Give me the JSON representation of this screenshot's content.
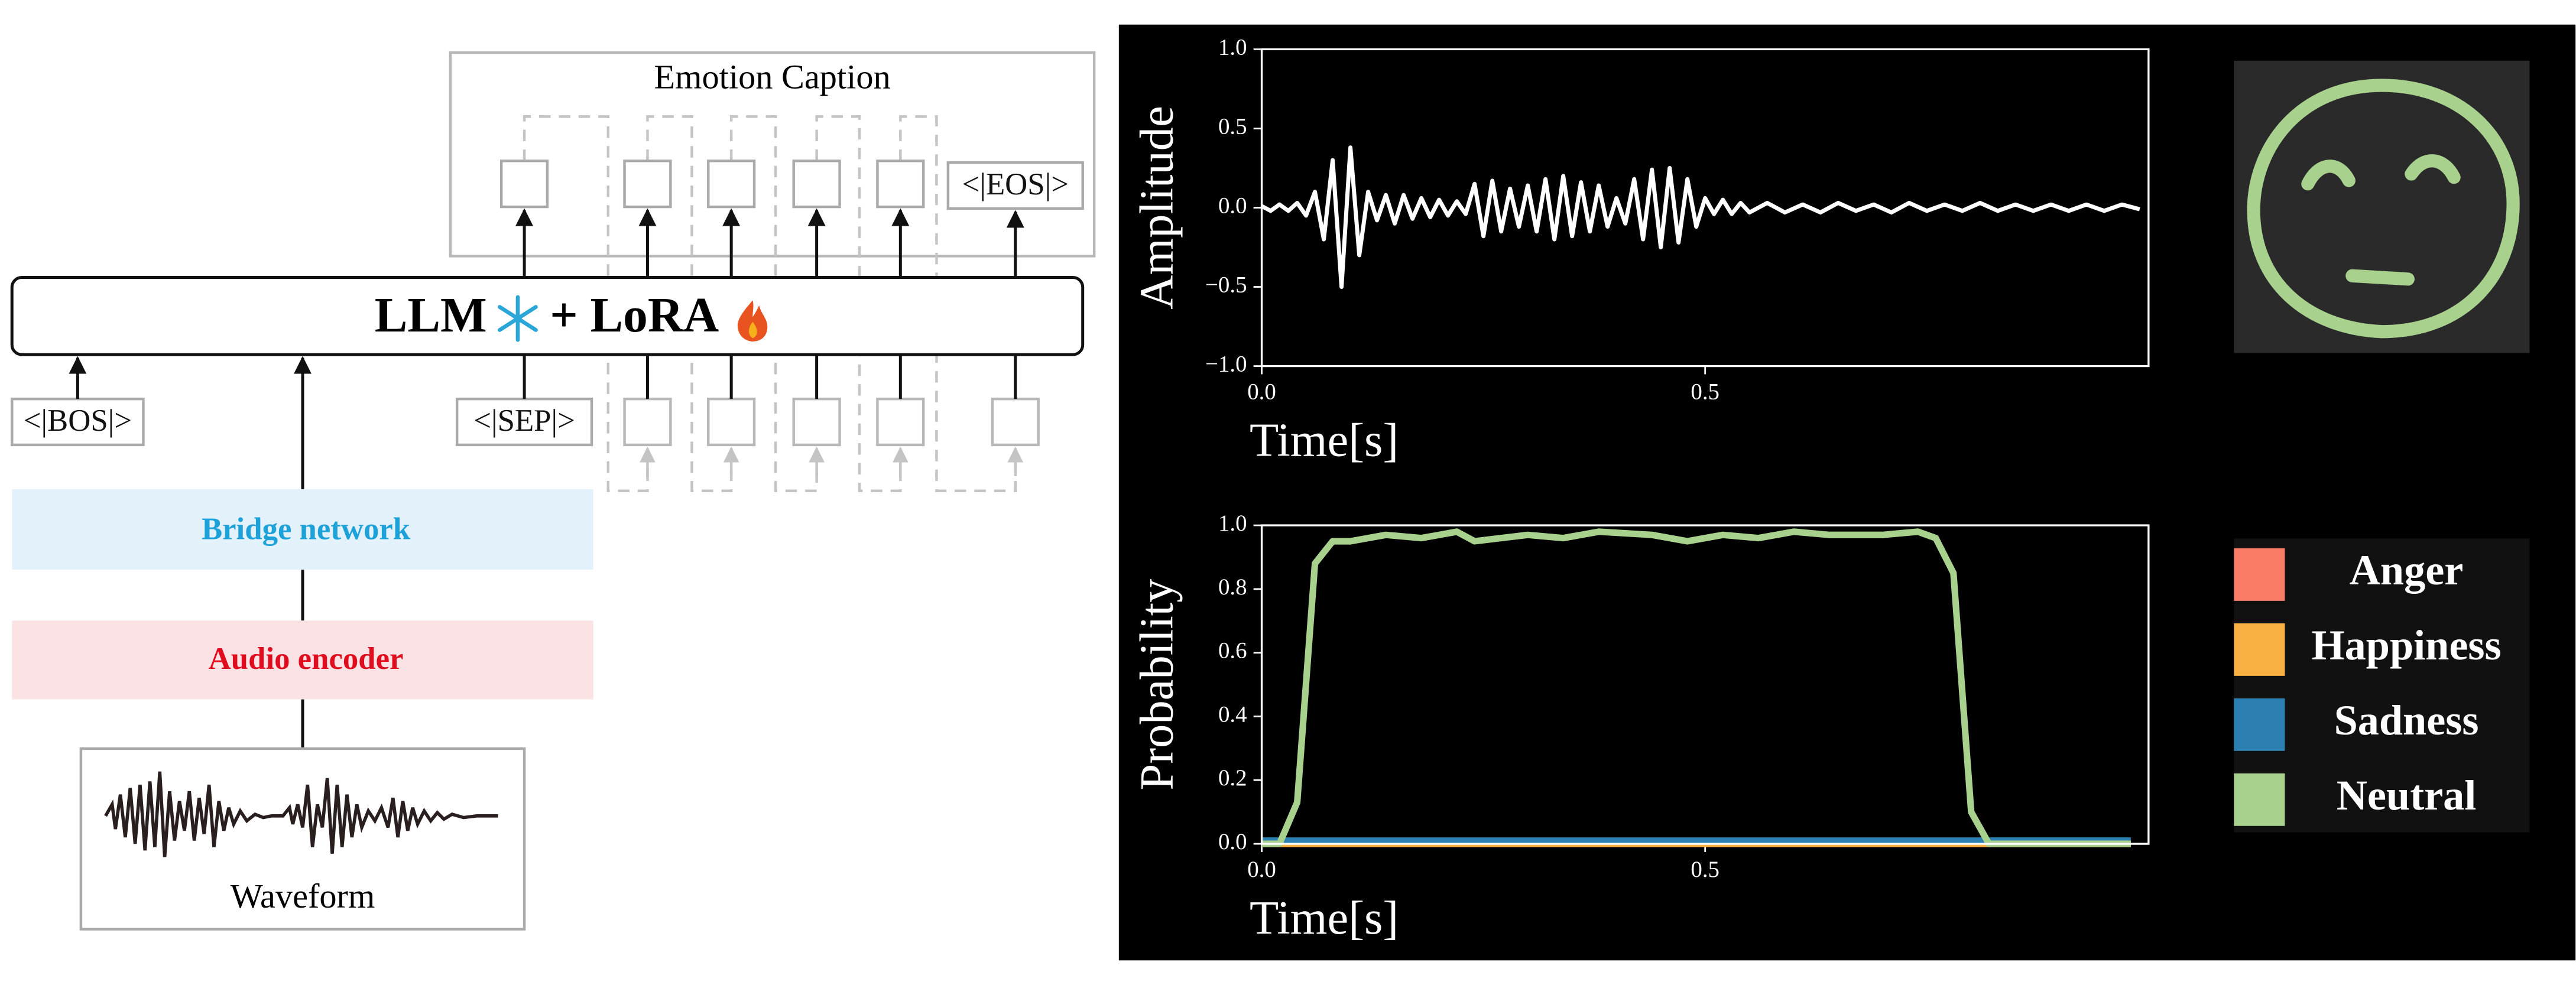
{
  "diagram": {
    "caption_title": "Emotion Caption",
    "llm_label": "LLM",
    "lora_label": "+ LoRA",
    "eos": "<|EOS|>",
    "bos": "<|BOS|>",
    "sep": "<|SEP|>",
    "bridge": "Bridge network",
    "encoder": "Audio encoder",
    "waveform": "Waveform"
  },
  "chart_data": [
    {
      "type": "line",
      "xlabel": "Time[s]",
      "ylabel": "Amplitude",
      "color": "#ffffff",
      "x": [
        0,
        0.01,
        0.02,
        0.03,
        0.04,
        0.05,
        0.06,
        0.07,
        0.08,
        0.09,
        0.1,
        0.11,
        0.12,
        0.13,
        0.14,
        0.15,
        0.16,
        0.17,
        0.18,
        0.19,
        0.2,
        0.21,
        0.22,
        0.23,
        0.24,
        0.25,
        0.26,
        0.27,
        0.28,
        0.29,
        0.3,
        0.31,
        0.32,
        0.33,
        0.34,
        0.35,
        0.36,
        0.37,
        0.38,
        0.39,
        0.4,
        0.41,
        0.42,
        0.43,
        0.44,
        0.45,
        0.46,
        0.47,
        0.48,
        0.49,
        0.5,
        0.51,
        0.52,
        0.53,
        0.54,
        0.55,
        0.57,
        0.59,
        0.61,
        0.63,
        0.65,
        0.67,
        0.69,
        0.71,
        0.73,
        0.75,
        0.77,
        0.79,
        0.81,
        0.83,
        0.85,
        0.87,
        0.89,
        0.91,
        0.93,
        0.95,
        0.97,
        0.99
      ],
      "values": [
        0.01,
        -0.02,
        0.02,
        -0.02,
        0.03,
        -0.05,
        0.1,
        -0.2,
        0.3,
        -0.5,
        0.38,
        -0.3,
        0.1,
        -0.08,
        0.08,
        -0.1,
        0.08,
        -0.07,
        0.06,
        -0.06,
        0.05,
        -0.05,
        0.04,
        -0.04,
        0.15,
        -0.18,
        0.17,
        -0.15,
        0.12,
        -0.12,
        0.14,
        -0.15,
        0.18,
        -0.2,
        0.2,
        -0.18,
        0.16,
        -0.15,
        0.14,
        -0.12,
        0.06,
        -0.1,
        0.18,
        -0.2,
        0.24,
        -0.25,
        0.25,
        -0.22,
        0.18,
        -0.12,
        0.06,
        -0.04,
        0.05,
        -0.04,
        0.03,
        -0.03,
        0.03,
        -0.03,
        0.02,
        -0.03,
        0.03,
        -0.02,
        0.02,
        -0.03,
        0.03,
        -0.02,
        0.02,
        -0.02,
        0.03,
        -0.02,
        0.02,
        -0.02,
        0.02,
        -0.02,
        0.02,
        -0.02,
        0.02,
        -0.01
      ],
      "xlim": [
        0,
        1
      ],
      "ylim": [
        -1,
        1
      ],
      "xticks": [
        {
          "value": 0,
          "label": "0.0"
        },
        {
          "value": 0.5,
          "label": "0.5"
        }
      ],
      "yticks": [
        {
          "value": -1,
          "label": "−1.0"
        },
        {
          "value": -0.5,
          "label": "−0.5"
        },
        {
          "value": 0,
          "label": "0.0"
        },
        {
          "value": 0.5,
          "label": "0.5"
        },
        {
          "value": 1,
          "label": "1.0"
        }
      ]
    },
    {
      "type": "line",
      "xlabel": "Time[s]",
      "ylabel": "Probability",
      "legend": "right",
      "x": [
        0,
        0.02,
        0.04,
        0.06,
        0.08,
        0.1,
        0.14,
        0.18,
        0.22,
        0.24,
        0.3,
        0.34,
        0.38,
        0.44,
        0.48,
        0.52,
        0.56,
        0.6,
        0.64,
        0.7,
        0.74,
        0.76,
        0.78,
        0.8,
        0.82,
        0.98
      ],
      "series": [
        {
          "name": "Anger",
          "color": "#f97c66",
          "values": [
            0,
            0,
            0,
            0,
            0,
            0,
            0,
            0,
            0,
            0,
            0,
            0,
            0,
            0,
            0,
            0,
            0,
            0,
            0,
            0,
            0,
            0,
            0,
            0,
            0,
            0
          ]
        },
        {
          "name": "Happiness",
          "color": "#f9b144",
          "values": [
            0,
            0,
            0,
            0,
            0,
            0,
            0,
            0,
            0,
            0,
            0,
            0,
            0,
            0,
            0,
            0,
            0,
            0,
            0,
            0,
            0,
            0,
            0,
            0,
            0,
            0
          ]
        },
        {
          "name": "Sadness",
          "color": "#2b7fb1",
          "values": [
            0.01,
            0.01,
            0.01,
            0.01,
            0.01,
            0.01,
            0.01,
            0.01,
            0.01,
            0.01,
            0.01,
            0.01,
            0.01,
            0.01,
            0.01,
            0.01,
            0.01,
            0.01,
            0.01,
            0.01,
            0.01,
            0.01,
            0.01,
            0.01,
            0.01,
            0.01
          ]
        },
        {
          "name": "Neutral",
          "color": "#a9d18e",
          "values": [
            0,
            0,
            0.13,
            0.88,
            0.95,
            0.95,
            0.97,
            0.96,
            0.98,
            0.95,
            0.97,
            0.96,
            0.98,
            0.97,
            0.95,
            0.97,
            0.96,
            0.98,
            0.97,
            0.97,
            0.98,
            0.96,
            0.85,
            0.1,
            0,
            0
          ]
        }
      ],
      "xlim": [
        0,
        1
      ],
      "ylim": [
        0,
        1
      ],
      "xticks": [
        {
          "value": 0,
          "label": "0.0"
        },
        {
          "value": 0.5,
          "label": "0.5"
        }
      ],
      "yticks": [
        {
          "value": 0,
          "label": "0.0"
        },
        {
          "value": 0.2,
          "label": "0.2"
        },
        {
          "value": 0.4,
          "label": "0.4"
        },
        {
          "value": 0.6,
          "label": "0.6"
        },
        {
          "value": 0.8,
          "label": "0.8"
        },
        {
          "value": 1,
          "label": "1.0"
        }
      ]
    }
  ]
}
